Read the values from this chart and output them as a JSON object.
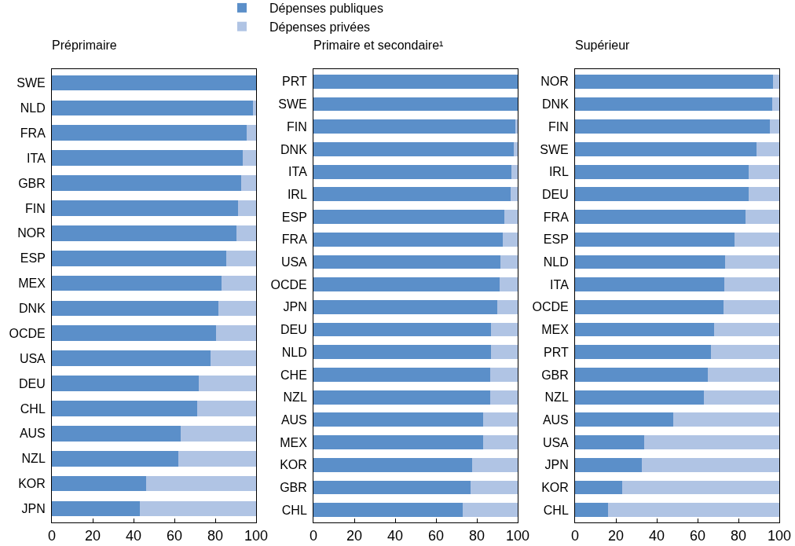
{
  "chart_data": [
    {
      "type": "bar",
      "orientation": "horizontal",
      "stacked": true,
      "title": "Préprimaire",
      "legend": "top",
      "categories": [
        "SWE",
        "NLD",
        "FRA",
        "ITA",
        "GBR",
        "FIN",
        "NOR",
        "ESP",
        "MEX",
        "DNK",
        "OCDE",
        "USA",
        "DEU",
        "CHL",
        "AUS",
        "NZL",
        "KOR",
        "JPN"
      ],
      "series": [
        {
          "name": "Dépenses publiques",
          "color": "#5b8fc9",
          "values": [
            100,
            98.5,
            95.5,
            93.5,
            92.5,
            91,
            90.5,
            85.5,
            83,
            81.5,
            80.5,
            77.5,
            72,
            71,
            63,
            62,
            46,
            43
          ]
        },
        {
          "name": "Dépenses privées",
          "color": "#b0c4e4",
          "values": [
            0,
            1.5,
            4.5,
            6.5,
            7.5,
            9,
            9.5,
            14.5,
            17,
            18.5,
            19.5,
            22.5,
            28,
            29,
            37,
            38,
            54,
            57
          ]
        }
      ],
      "xlim": [
        0,
        100
      ],
      "xticks": [
        0,
        20,
        40,
        60,
        80,
        100
      ]
    },
    {
      "type": "bar",
      "orientation": "horizontal",
      "stacked": true,
      "title": "Primaire et secondaire¹",
      "categories": [
        "PRT",
        "SWE",
        "FIN",
        "DNK",
        "ITA",
        "IRL",
        "ESP",
        "FRA",
        "USA",
        "OCDE",
        "JPN",
        "DEU",
        "NLD",
        "CHE",
        "NZL",
        "AUS",
        "MEX",
        "KOR",
        "GBR",
        "CHL"
      ],
      "series": [
        {
          "color": "#5b8fc9",
          "values": [
            100,
            100,
            99,
            98,
            97,
            96.5,
            93.5,
            92.5,
            91.5,
            91,
            90,
            87,
            87,
            86.5,
            86.5,
            83,
            83,
            77.5,
            77,
            73
          ]
        },
        {
          "color": "#b0c4e4",
          "values": [
            0,
            0,
            1,
            2,
            3,
            3.5,
            6.5,
            7.5,
            8.5,
            9,
            10,
            13,
            13,
            13.5,
            13.5,
            17,
            17,
            22.5,
            23,
            27
          ]
        }
      ],
      "xlim": [
        0,
        100
      ],
      "xticks": [
        0,
        20,
        40,
        60,
        80,
        100
      ]
    },
    {
      "type": "bar",
      "orientation": "horizontal",
      "stacked": true,
      "title": "Supérieur",
      "categories": [
        "NOR",
        "DNK",
        "FIN",
        "SWE",
        "IRL",
        "DEU",
        "FRA",
        "ESP",
        "NLD",
        "ITA",
        "OCDE",
        "MEX",
        "PRT",
        "GBR",
        "NZL",
        "AUS",
        "USA",
        "JPN",
        "KOR",
        "CHL"
      ],
      "series": [
        {
          "color": "#5b8fc9",
          "values": [
            97,
            96.5,
            95.5,
            89,
            85,
            85,
            83.5,
            78,
            73.5,
            73,
            72.5,
            68,
            66.5,
            65,
            63,
            48,
            34,
            32.5,
            23,
            16
          ]
        },
        {
          "color": "#b0c4e4",
          "values": [
            3,
            3.5,
            4.5,
            11,
            15,
            15,
            16.5,
            22,
            26.5,
            27,
            27.5,
            32,
            33.5,
            35,
            37,
            52,
            66,
            67.5,
            77,
            84
          ]
        }
      ],
      "xlim": [
        0,
        100
      ],
      "xticks": [
        0,
        20,
        40,
        60,
        80,
        100
      ]
    }
  ]
}
